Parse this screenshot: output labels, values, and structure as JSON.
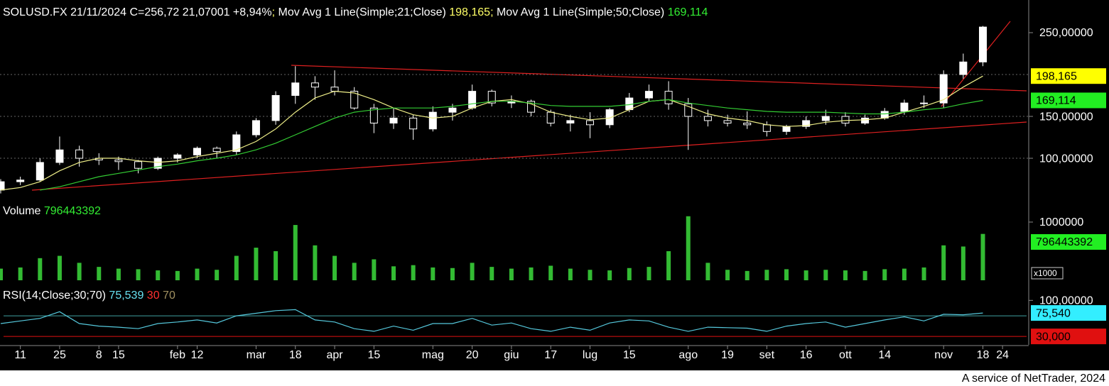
{
  "chart_data": [
    {
      "type": "candlestick",
      "header": [
        {
          "text": "SOLUSD.FX 21/11/2024 C=256,72 21,07001 +8,94%",
          "color": "#ffffff"
        },
        {
          "text": "; ",
          "color": "#ffff66"
        },
        {
          "text": "Mov Avg 1 Line(Simple;21;Close)",
          "color": "#ffffff"
        },
        {
          "text": " 198,165;",
          "color": "#ffff66"
        },
        {
          "text": " Mov Avg 1 Line(Simple;50;Close)",
          "color": "#ffffff"
        },
        {
          "text": " 169,114",
          "color": "#33ee33"
        }
      ],
      "categories": [
        null,
        "11",
        null,
        "25",
        null,
        "8",
        "15",
        null,
        null,
        "feb",
        "12",
        null,
        null,
        "mar",
        null,
        "18",
        null,
        "apr",
        null,
        "15",
        null,
        null,
        "mag",
        null,
        "20",
        null,
        "giu",
        null,
        "17",
        null,
        "lug",
        null,
        "15",
        null,
        null,
        "ago",
        null,
        "19",
        null,
        "set",
        null,
        "16",
        null,
        "ott",
        null,
        "14",
        null,
        null,
        "nov",
        null,
        "18",
        "24"
      ],
      "open": [
        62,
        72,
        74,
        95,
        110,
        100,
        98,
        96,
        88,
        100,
        104,
        112,
        108,
        128,
        145,
        175,
        190,
        185,
        180,
        160,
        142,
        148,
        135,
        155,
        160,
        180,
        166,
        168,
        155,
        142,
        145,
        140,
        158,
        172,
        180,
        165,
        150,
        145,
        142,
        140,
        132,
        138,
        145,
        150,
        142,
        148,
        156,
        166,
        166,
        200,
        215,
        null
      ],
      "high": [
        75,
        78,
        100,
        126,
        115,
        106,
        102,
        98,
        102,
        106,
        114,
        114,
        132,
        148,
        180,
        210,
        198,
        205,
        185,
        165,
        160,
        152,
        162,
        165,
        188,
        182,
        175,
        170,
        158,
        152,
        155,
        160,
        178,
        188,
        192,
        172,
        158,
        152,
        156,
        144,
        140,
        150,
        158,
        155,
        152,
        160,
        170,
        175,
        205,
        225,
        258,
        null
      ],
      "low": [
        58,
        68,
        72,
        92,
        90,
        92,
        86,
        82,
        86,
        95,
        100,
        100,
        104,
        125,
        140,
        165,
        170,
        175,
        158,
        130,
        135,
        122,
        132,
        145,
        158,
        162,
        160,
        150,
        138,
        132,
        124,
        136,
        155,
        168,
        158,
        110,
        138,
        138,
        135,
        126,
        128,
        135,
        140,
        138,
        140,
        146,
        152,
        160,
        160,
        195,
        210,
        null
      ],
      "close": [
        72,
        74,
        95,
        110,
        100,
        98,
        96,
        88,
        100,
        104,
        112,
        108,
        128,
        145,
        175,
        190,
        185,
        180,
        160,
        142,
        148,
        135,
        155,
        160,
        180,
        166,
        168,
        155,
        142,
        145,
        140,
        158,
        172,
        180,
        165,
        150,
        145,
        142,
        140,
        132,
        138,
        145,
        150,
        142,
        148,
        156,
        166,
        166,
        200,
        215,
        256.72,
        null
      ],
      "color_up": "#ffffff",
      "color_down": "#000000",
      "series": [
        {
          "color": "#eeee88",
          "last_label": "198,165",
          "label_color": "#ffff00",
          "values": [
            62,
            65,
            72,
            85,
            95,
            100,
            100,
            97,
            95,
            97,
            102,
            106,
            110,
            120,
            135,
            155,
            172,
            180,
            178,
            170,
            160,
            152,
            148,
            150,
            160,
            168,
            170,
            165,
            155,
            150,
            146,
            148,
            158,
            168,
            170,
            162,
            153,
            148,
            145,
            140,
            138,
            139,
            143,
            145,
            146,
            148,
            155,
            162,
            170,
            185,
            198.165,
            null
          ]
        },
        {
          "color": "#33cc33",
          "last_label": "169,114",
          "label_color": "#22ee22",
          "values": [
            null,
            null,
            62,
            66,
            72,
            78,
            82,
            86,
            90,
            93,
            97,
            100,
            104,
            110,
            118,
            128,
            138,
            148,
            155,
            158,
            160,
            160,
            160,
            162,
            165,
            168,
            168,
            166,
            163,
            162,
            162,
            162,
            164,
            168,
            170,
            166,
            163,
            160,
            158,
            156,
            155,
            155,
            155,
            154,
            153,
            153,
            155,
            158,
            160,
            165,
            169.114,
            null
          ]
        }
      ],
      "ylim": [
        47.5,
        289
      ],
      "yticks": [
        {
          "value": 100,
          "label": "100,00000"
        },
        {
          "value": 150,
          "label": "150,00000"
        },
        {
          "value": 250,
          "label": "250,00000"
        }
      ],
      "grid_values": [
        100,
        150,
        200
      ]
    },
    {
      "type": "bar",
      "header": [
        {
          "text": "Volume",
          "color": "#ffffff"
        },
        {
          "text": " 796443392",
          "color": "#33ee33"
        }
      ],
      "values": [
        200000000,
        220000000,
        380000000,
        420000000,
        300000000,
        230000000,
        200000000,
        190000000,
        170000000,
        160000000,
        200000000,
        180000000,
        420000000,
        560000000,
        500000000,
        950000000,
        600000000,
        420000000,
        300000000,
        360000000,
        240000000,
        260000000,
        220000000,
        210000000,
        300000000,
        230000000,
        200000000,
        220000000,
        250000000,
        200000000,
        180000000,
        170000000,
        210000000,
        230000000,
        500000000,
        1100000000,
        300000000,
        180000000,
        160000000,
        180000000,
        190000000,
        170000000,
        180000000,
        170000000,
        160000000,
        190000000,
        200000000,
        220000000,
        600000000,
        580000000,
        796443392,
        null
      ],
      "color": "#33bb33",
      "ylim": [
        0,
        1280000000
      ],
      "yticks": [
        {
          "value": 1000000000,
          "label": "1000000"
        }
      ],
      "scale_label": "x1000",
      "last_label": "796443392",
      "label_color": "#22ee22"
    },
    {
      "type": "line",
      "header": [
        {
          "text": "RSI(14;Close;30;70)",
          "color": "#ffffff"
        },
        {
          "text": " 75,539",
          "color": "#66e0f0"
        },
        {
          "text": " 30",
          "color": "#ff3030"
        },
        {
          "text": " 70",
          "color": "#a09060"
        }
      ],
      "values": [
        55,
        60,
        65,
        78,
        55,
        50,
        48,
        45,
        55,
        58,
        62,
        56,
        70,
        75,
        80,
        82,
        62,
        58,
        45,
        40,
        50,
        42,
        55,
        55,
        65,
        52,
        56,
        45,
        40,
        48,
        42,
        56,
        62,
        60,
        48,
        40,
        48,
        47,
        46,
        40,
        50,
        55,
        58,
        48,
        55,
        62,
        68,
        60,
        73,
        72,
        75.539,
        null
      ],
      "color": "#55c8dc",
      "ylim": [
        15,
        128
      ],
      "yticks": [
        {
          "value": 100,
          "label": "100,00000"
        }
      ],
      "levels": [
        {
          "value": 70,
          "color": "#3f9f9f"
        },
        {
          "value": 30,
          "color": "#e01010",
          "label": "30,000"
        }
      ],
      "last_label": "75,540",
      "label_color": "#33eeff"
    }
  ],
  "footer": "A service of NetTrader, 2024"
}
